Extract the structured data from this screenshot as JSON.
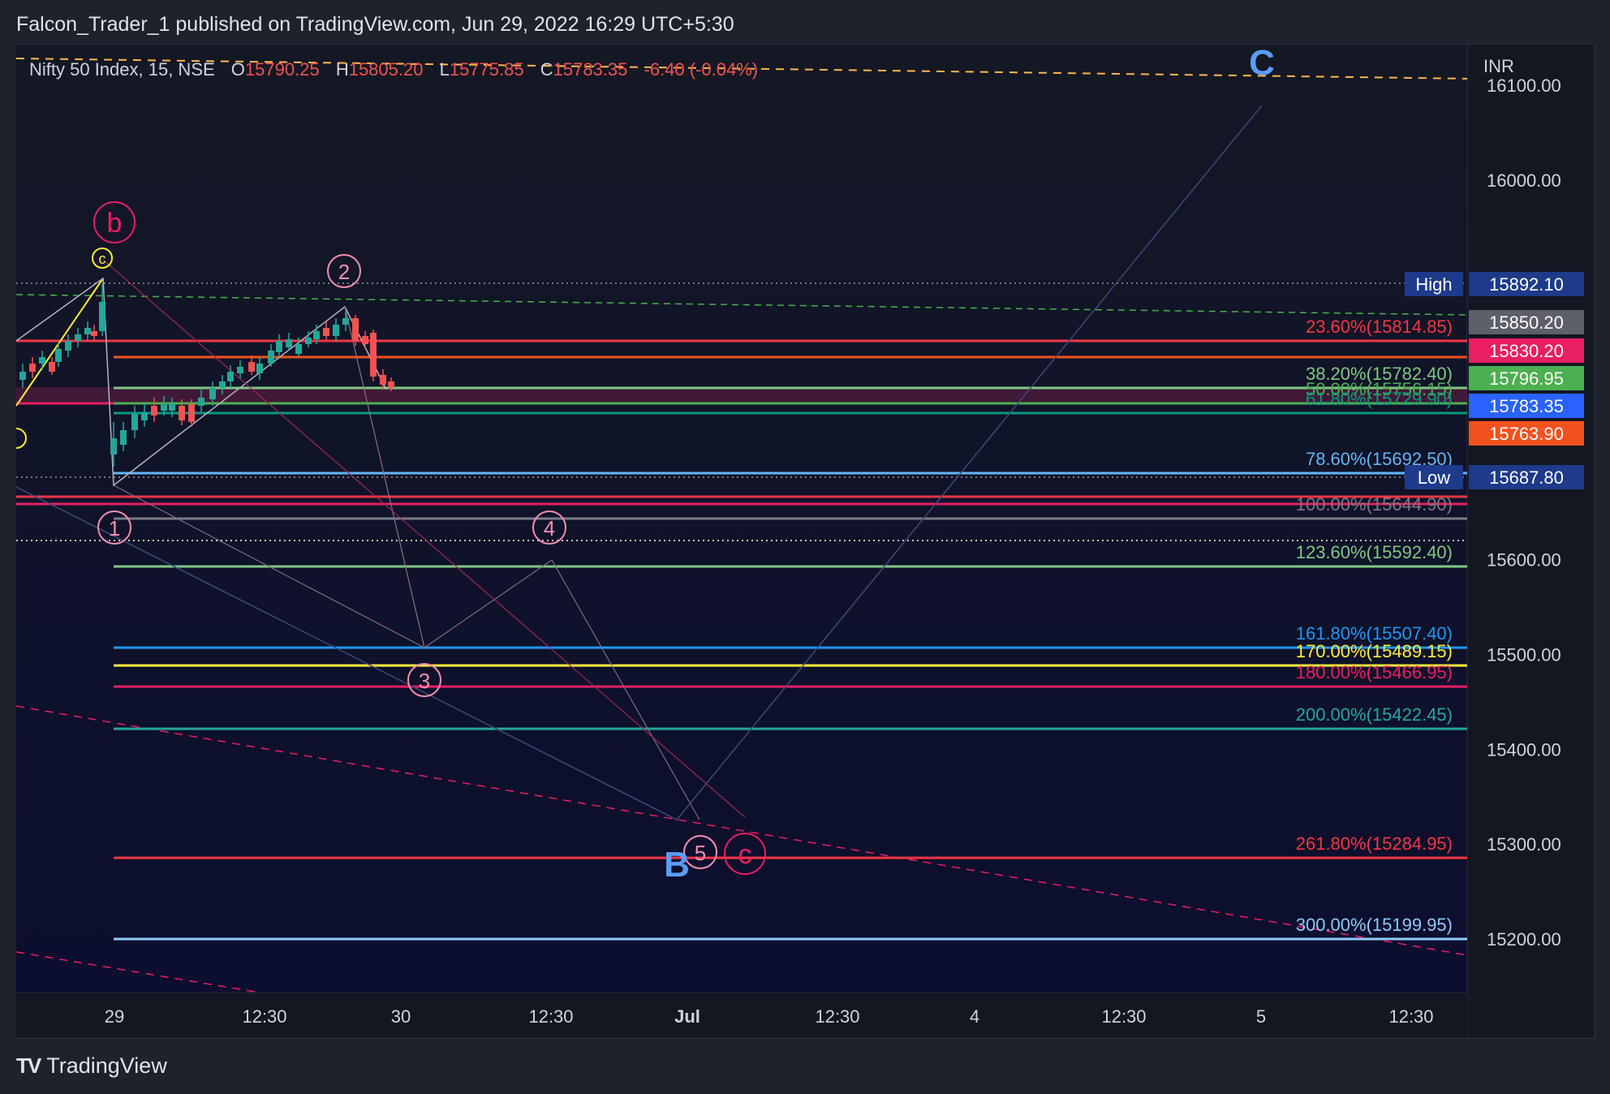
{
  "header": {
    "published_line": "Falcon_Trader_1 published on TradingView.com, Jun 29, 2022 16:29 UTC+5:30"
  },
  "legend": {
    "symbol": "Nifty 50 Index, 15, NSE",
    "o_label": "O",
    "o_value": "15790.25",
    "h_label": "H",
    "h_value": "15805.20",
    "l_label": "L",
    "l_value": "15775.85",
    "c_label": "C",
    "c_value": "15783.35",
    "change": "-6.40 (-0.04%)"
  },
  "currency": "INR",
  "colors": {
    "background_top": "#141824",
    "background_bottom": "#0b0e2e",
    "up": "#26a69a",
    "down": "#ef5350",
    "accent_blue": "#5b9cf6"
  },
  "price_axis": {
    "ticks": [
      "16100.00",
      "16000.00",
      "15600.00",
      "15500.00",
      "15400.00",
      "15300.00",
      "15200.00"
    ],
    "tick_values": [
      16100,
      16000,
      15600,
      15500,
      15400,
      15300,
      15200
    ]
  },
  "time_axis": {
    "labels": [
      "29",
      "12:30",
      "30",
      "12:30",
      "Jul",
      "12:30",
      "4",
      "12:30",
      "5",
      "12:30"
    ]
  },
  "price_badges": [
    {
      "label": "High",
      "value": "15892.10",
      "bg": "#1e3a8a"
    },
    {
      "label": "",
      "value": "15850.20",
      "bg": "#5d606b"
    },
    {
      "label": "",
      "value": "15830.20",
      "bg": "#e91e63"
    },
    {
      "label": "",
      "value": "15796.95",
      "bg": "#4caf50"
    },
    {
      "label": "",
      "value": "15783.35",
      "bg": "#2962ff"
    },
    {
      "label": "",
      "value": "15763.90",
      "bg": "#f4511e"
    },
    {
      "label": "Low",
      "value": "15687.80",
      "bg": "#1e3a8a"
    }
  ],
  "fib_levels": [
    {
      "label": "23.60%(15814.85)",
      "color": "#f23645"
    },
    {
      "label": "38.20%(15782.40)",
      "color": "#81c784"
    },
    {
      "label": "50.00%(15756.15)",
      "color": "#4caf50"
    },
    {
      "label": "61.80%(15729.90)",
      "color": "#089981"
    },
    {
      "label": "78.60%(15692.50)",
      "color": "#64b5f6"
    },
    {
      "label": "100.00%(15644.90)",
      "color": "#787b86"
    },
    {
      "label": "123.60%(15592.40)",
      "color": "#81c784"
    },
    {
      "label": "161.80%(15507.40)",
      "color": "#2196f3"
    },
    {
      "label": "170.00%(15489.15)",
      "color": "#ffeb3b"
    },
    {
      "label": "180.00%(15466.95)",
      "color": "#e91e63"
    },
    {
      "label": "200.00%(15422.45)",
      "color": "#26a69a"
    },
    {
      "label": "261.80%(15284.95)",
      "color": "#f23645"
    },
    {
      "label": "300.00%(15199.95)",
      "color": "#90caf9"
    }
  ],
  "wave_labels": {
    "b": "b",
    "c_small_yellow": "c",
    "w1": "1",
    "w2": "2",
    "w3": "3",
    "w4": "4",
    "w5": "5",
    "c_red": "c",
    "B": "B",
    "C": "C"
  },
  "footer": {
    "brand": "TradingView",
    "logo_glyph": "TV"
  }
}
